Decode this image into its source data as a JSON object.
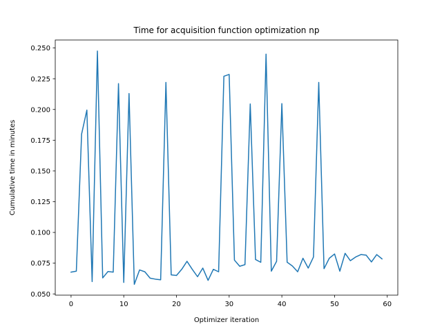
{
  "chart_data": {
    "type": "line",
    "title": "Time for acquisition function optimization np",
    "xlabel": "Optimizer iteration",
    "ylabel": "Cumulative time in minutes",
    "xlim": [
      -3,
      62
    ],
    "ylim": [
      0.049,
      0.2565
    ],
    "grid": false,
    "x_ticks": [
      0,
      10,
      20,
      30,
      40,
      50,
      60
    ],
    "y_ticks": [
      0.05,
      0.075,
      0.1,
      0.125,
      0.15,
      0.175,
      0.2,
      0.225,
      0.25
    ],
    "x_tick_labels": [
      "0",
      "10",
      "20",
      "30",
      "40",
      "50",
      "60"
    ],
    "y_tick_labels": [
      "0.050",
      "0.075",
      "0.100",
      "0.125",
      "0.150",
      "0.175",
      "0.200",
      "0.225",
      "0.250"
    ],
    "series": [
      {
        "color": "#1f77b4",
        "x": [
          0,
          1,
          2,
          3,
          4,
          5,
          6,
          7,
          8,
          9,
          10,
          11,
          12,
          13,
          14,
          15,
          16,
          17,
          18,
          19,
          20,
          21,
          22,
          23,
          24,
          25,
          26,
          27,
          28,
          29,
          30,
          31,
          32,
          33,
          34,
          35,
          36,
          37,
          38,
          39,
          40,
          41,
          42,
          43,
          44,
          45,
          46,
          47,
          48,
          49,
          50,
          51,
          52,
          53,
          54,
          55,
          56,
          57,
          58,
          59
        ],
        "values": [
          0.0677,
          0.0685,
          0.18,
          0.1995,
          0.06,
          0.2475,
          0.063,
          0.0682,
          0.0677,
          0.221,
          0.0593,
          0.213,
          0.0578,
          0.0695,
          0.068,
          0.0628,
          0.062,
          0.0615,
          0.222,
          0.0655,
          0.065,
          0.07,
          0.0765,
          0.07,
          0.064,
          0.071,
          0.061,
          0.07,
          0.068,
          0.227,
          0.2285,
          0.0775,
          0.0725,
          0.0738,
          0.2045,
          0.078,
          0.0757,
          0.245,
          0.0685,
          0.0765,
          0.2048,
          0.0758,
          0.0727,
          0.068,
          0.079,
          0.071,
          0.08,
          0.222,
          0.0705,
          0.079,
          0.0825,
          0.0685,
          0.083,
          0.077,
          0.08,
          0.082,
          0.0815,
          0.076,
          0.082,
          0.0785
        ]
      }
    ]
  }
}
